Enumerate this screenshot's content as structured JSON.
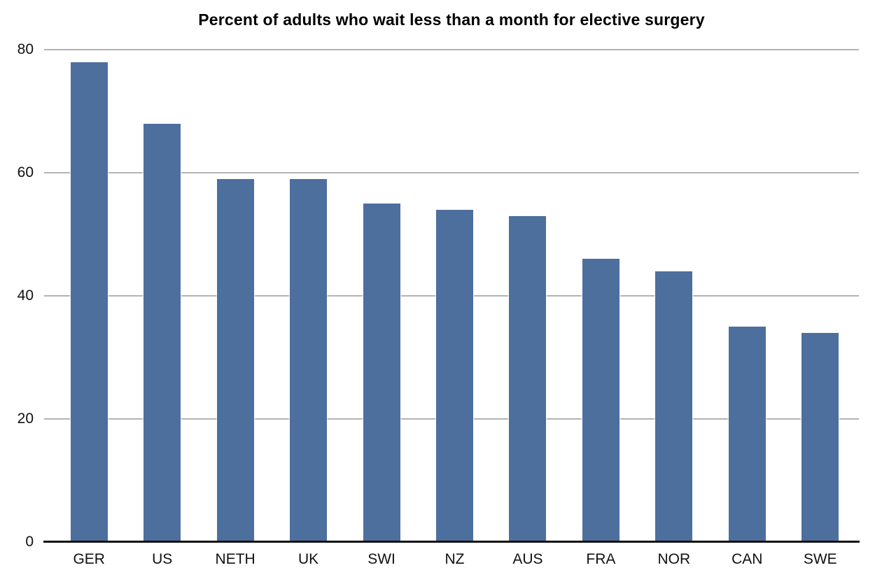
{
  "chart_data": {
    "type": "bar",
    "title": "Percent of adults who wait less than a month for elective surgery",
    "categories": [
      "GER",
      "US",
      "NETH",
      "UK",
      "SWI",
      "NZ",
      "AUS",
      "FRA",
      "NOR",
      "CAN",
      "SWE"
    ],
    "values": [
      78,
      68,
      59,
      59,
      55,
      54,
      53,
      46,
      44,
      35,
      34
    ],
    "xlabel": "",
    "ylabel": "",
    "ylim": [
      0,
      80
    ],
    "yticks": [
      0,
      20,
      40,
      60,
      80
    ],
    "grid": true,
    "legend": false,
    "colors": {
      "bar": "#4d6f9e",
      "gridline": "#b3b3b3",
      "axis": "#111111",
      "background": "#ffffff",
      "text": "#111111"
    }
  }
}
